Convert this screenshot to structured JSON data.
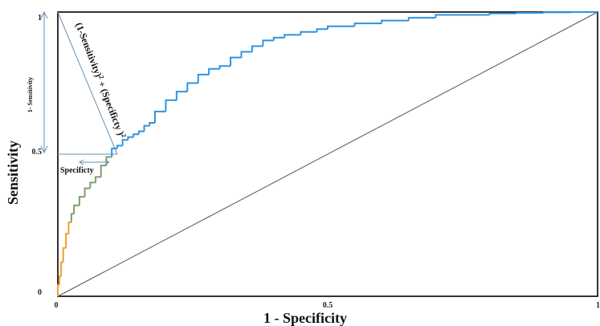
{
  "chart_data": {
    "type": "line",
    "title": "",
    "xlabel": "1 - Specificity",
    "ylabel": "Sensitivity",
    "xlim": [
      0,
      1
    ],
    "ylim": [
      0,
      1
    ],
    "x_ticks": [
      {
        "value": 0,
        "label": "0"
      },
      {
        "value": 0.5,
        "label": "0.5"
      },
      {
        "value": 1,
        "label": "1"
      }
    ],
    "y_ticks": [
      {
        "value": 0,
        "label": "0"
      },
      {
        "value": 0.5,
        "label": "0.5"
      },
      {
        "value": 1,
        "label": "1"
      }
    ],
    "grid": false,
    "legend": "none",
    "colors": {
      "roc_low": "#f0a030",
      "roc_mid": "#7aa070",
      "roc_high": "#2e93e0",
      "reference": "#555555",
      "annotation": "#6a8fb5"
    },
    "series": [
      {
        "role": "roc-curve",
        "x": [
          0,
          0.003,
          0.006,
          0.01,
          0.015,
          0.02,
          0.025,
          0.03,
          0.04,
          0.05,
          0.06,
          0.07,
          0.08,
          0.09,
          0.1,
          0.11,
          0.12,
          0.13,
          0.14,
          0.15,
          0.16,
          0.17,
          0.18,
          0.2,
          0.22,
          0.24,
          0.26,
          0.28,
          0.3,
          0.32,
          0.34,
          0.36,
          0.38,
          0.4,
          0.42,
          0.45,
          0.48,
          0.5,
          0.55,
          0.6,
          0.65,
          0.7,
          0.75,
          0.8,
          0.85,
          0.9,
          0.95,
          1.0
        ],
        "y": [
          0,
          0.04,
          0.07,
          0.12,
          0.17,
          0.22,
          0.26,
          0.29,
          0.32,
          0.35,
          0.38,
          0.4,
          0.42,
          0.46,
          0.49,
          0.52,
          0.53,
          0.55,
          0.56,
          0.57,
          0.58,
          0.6,
          0.61,
          0.65,
          0.69,
          0.72,
          0.75,
          0.78,
          0.8,
          0.81,
          0.84,
          0.86,
          0.88,
          0.9,
          0.91,
          0.92,
          0.93,
          0.94,
          0.95,
          0.96,
          0.97,
          0.98,
          0.99,
          0.99,
          0.995,
          0.997,
          0.999,
          1.0
        ]
      },
      {
        "role": "reference-diagonal",
        "x": [
          0,
          1
        ],
        "y": [
          0,
          1
        ]
      }
    ],
    "annotations": {
      "one_minus_sensitivity": "1- Sensitivity",
      "specificity": "Specificty",
      "distance_formula_base1": "(1-Sensitivity)",
      "distance_formula_exp1": "2",
      "distance_formula_plus": " + (Specificty )",
      "distance_formula_exp2": "2",
      "optimal_point": {
        "x": 0.11,
        "y": 0.5
      }
    }
  }
}
